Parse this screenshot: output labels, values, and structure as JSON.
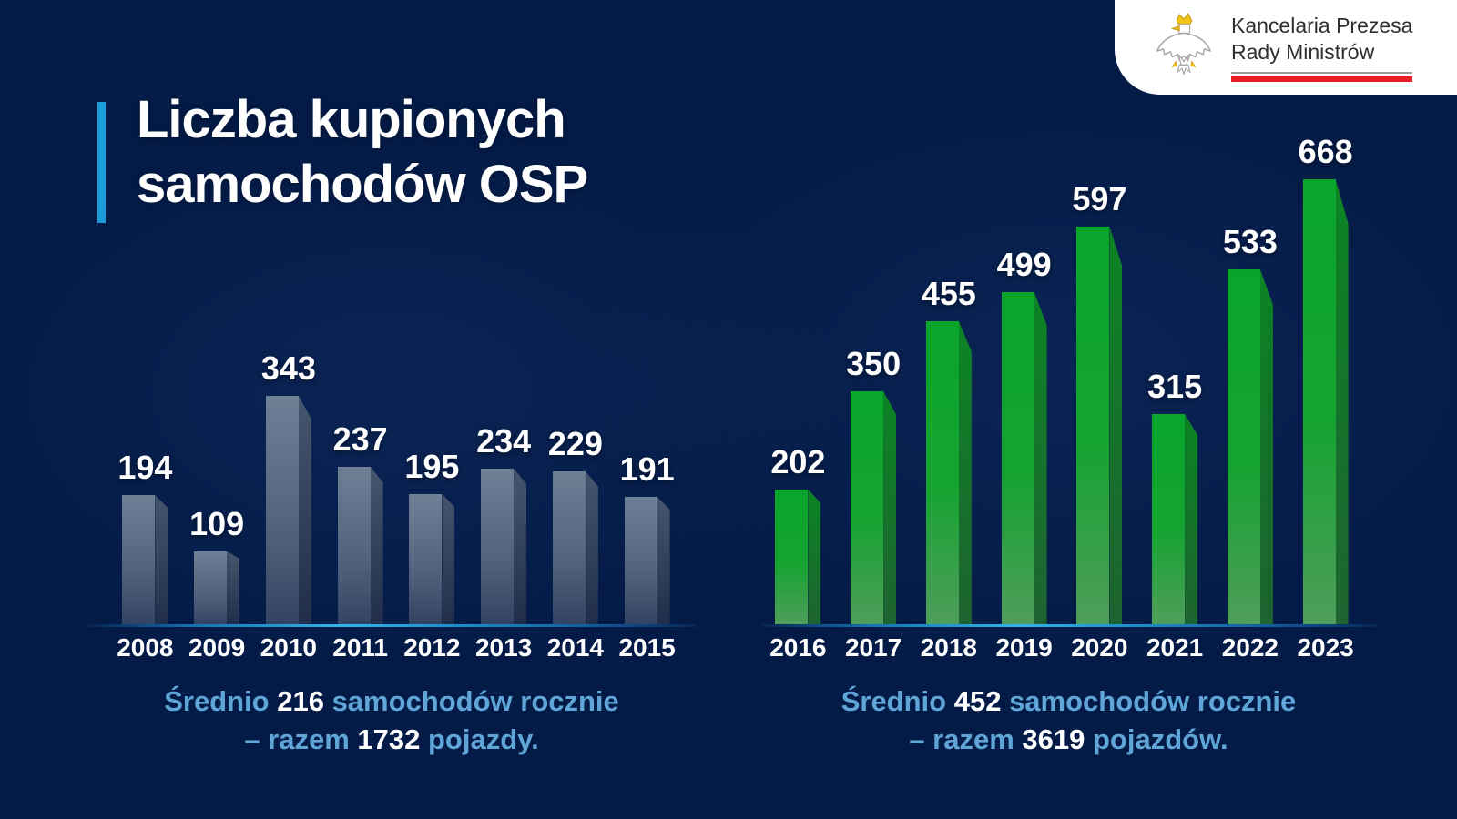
{
  "title": {
    "line1": "Liczba kupionych",
    "line2": "samochodów OSP"
  },
  "logo": {
    "org_line1": "Kancelaria Prezesa",
    "org_line2": "Rady Ministrów",
    "eagle_icon": "polish-eagle-emblem"
  },
  "colors": {
    "background": "#041B47",
    "accent_bar": "#1B9BD8",
    "title_text": "#FFFFFF",
    "axis_line_bright": "#2FB5EC",
    "caption_text": "#5FA5D8",
    "caption_number": "#FFFFFF",
    "year_label": "#FFFFFF",
    "value_label": "#FFFFFF",
    "logo_card": "#FFFFFF",
    "logo_text": "#2F2F2F",
    "logo_line_gray": "#9B9B9B",
    "logo_line_red": "#E61E28",
    "eagle_gold": "#F2C318"
  },
  "chart_data": [
    {
      "type": "bar",
      "categories": [
        "2008",
        "2009",
        "2010",
        "2011",
        "2012",
        "2013",
        "2014",
        "2015"
      ],
      "values": [
        194,
        109,
        343,
        237,
        195,
        234,
        229,
        191
      ],
      "title": "",
      "xlabel": "",
      "ylabel": "",
      "ylim": [
        0,
        700
      ],
      "grid": false,
      "legend": "none",
      "bar_style": "3d-extruded",
      "colors": {
        "front_top": "#6E8096",
        "front_mid": "#53657E",
        "front_bottom": "#324462",
        "side_top": "#46566E",
        "side_bottom": "#202E4B"
      },
      "caption": {
        "prefix": "Średnio ",
        "avg": "216",
        "middle": " samochodów rocznie",
        "line2_prefix": "– razem ",
        "total": "1732",
        "suffix": " pojazdy."
      }
    },
    {
      "type": "bar",
      "categories": [
        "2016",
        "2017",
        "2018",
        "2019",
        "2020",
        "2021",
        "2022",
        "2023"
      ],
      "values": [
        202,
        350,
        455,
        499,
        597,
        315,
        533,
        668
      ],
      "title": "",
      "xlabel": "",
      "ylabel": "",
      "ylim": [
        0,
        700
      ],
      "grid": false,
      "legend": "none",
      "bar_style": "3d-extruded",
      "colors": {
        "front_top": "#09A52B",
        "front_mid": "#15A331",
        "front_bottom": "#4F9D5A",
        "side_top": "#0B8424",
        "side_bottom": "#1E6330"
      },
      "caption": {
        "prefix": "Średnio ",
        "avg": "452",
        "middle": " samochodów rocznie",
        "line2_prefix": "– razem ",
        "total": "3619",
        "suffix": " pojazdów."
      }
    }
  ]
}
